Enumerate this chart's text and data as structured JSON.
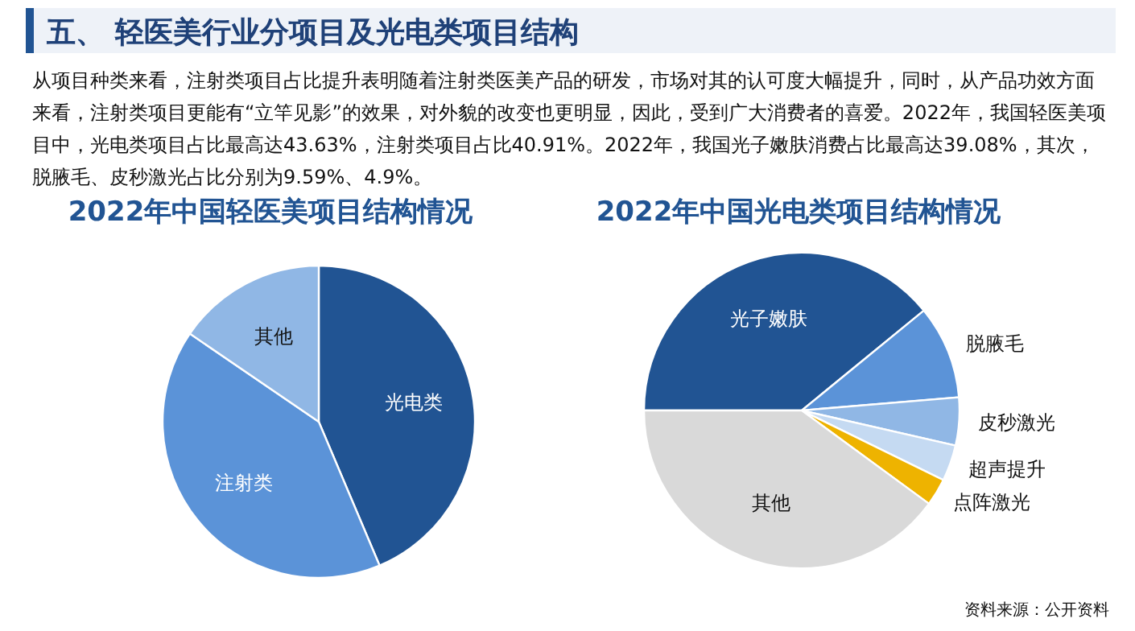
{
  "chart_data": [
    {
      "type": "pie",
      "title": "2022年中国轻医美项目结构情况",
      "annotations": [
        "五、 轻医美行业分项目及光电类项目结构",
        "从项目种类来看，注射类项目占比提升表明随着注射类医美产品的研发，市场对其的认可度大幅提升，同时，从产品功效方面来看，注射类项目更能有“立竿见影”的效果，对外貌的改变也更明显，因此，受到广大消费者的喜爱。2022年，我国轻医美项目中，光电类项目占比最高达43.63%，注射类项目占比40.91%。2022年，我国光子嫩肤消费占比最高达39.08%，其次，脱腋毛、皮秒激光占比分别为9.59%、4.9%。"
      ],
      "categories": [
        "光电类",
        "注射类",
        "其他"
      ],
      "values": [
        43.63,
        40.91,
        15.46
      ],
      "colors": [
        "#215493",
        "#5b93d8",
        "#90b7e5"
      ]
    },
    {
      "type": "pie",
      "title": "2022年中国光电类项目结构情况",
      "annotations": [
        "资料来源：公开资料"
      ],
      "categories": [
        "光子嫩肤",
        "脱腋毛",
        "皮秒激光",
        "超声提升",
        "点阵激光",
        "其他"
      ],
      "values": [
        39.08,
        9.59,
        4.9,
        3.7,
        2.8,
        39.93
      ],
      "colors": [
        "#215493",
        "#5b93d8",
        "#90b7e5",
        "#c5daf2",
        "#eeb300",
        "#d9d9d9"
      ]
    }
  ]
}
